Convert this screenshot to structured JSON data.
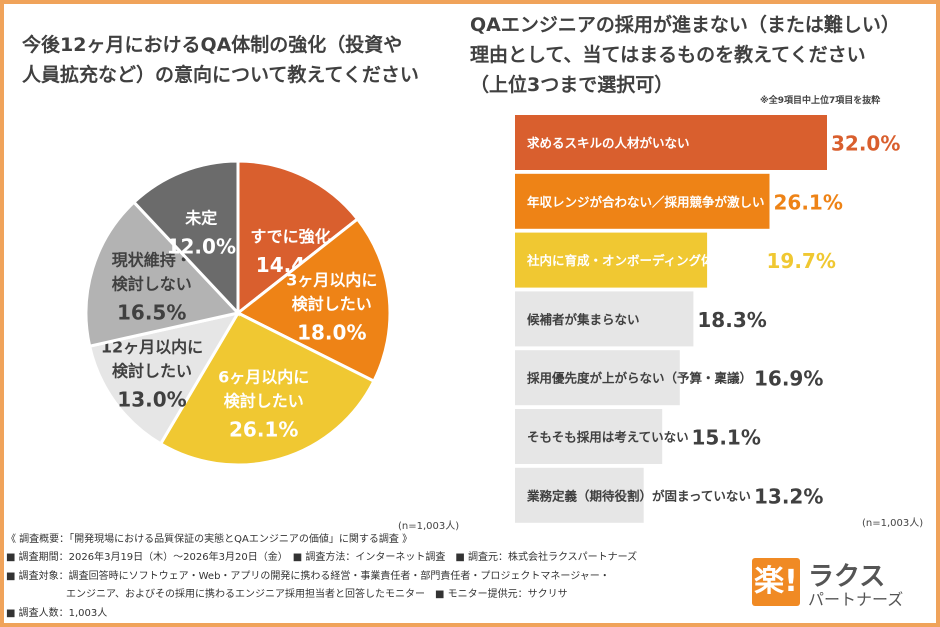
{
  "pie_title": "今後12ヶ月におけるQA体制の強化（投資や\n人員拡充など）の意向について教えてください",
  "bar_title": "QAエンジニアの採用が進まない（または難しい）\n理由として、当てはまるものを教えてください\n（上位3つまで選択可）",
  "bar_note": "※全9項目中上位7項目を抜粋",
  "pie_n": "(n=1,003人)",
  "bar_n": "(n=1,003人)",
  "chart_data": [
    {
      "type": "pie",
      "title": "今後12ヶ月におけるQA体制の強化（投資や人員拡充など）の意向について教えてください",
      "slices": [
        {
          "label_lines": [
            "すでに強化"
          ],
          "value": 14.4,
          "value_label": "14.4%",
          "color": "#d95f2e",
          "text_color": "#ffffff"
        },
        {
          "label_lines": [
            "3ヶ月以内に",
            "検討したい"
          ],
          "value": 18.0,
          "value_label": "18.0%",
          "color": "#ee8316",
          "text_color": "#ffffff"
        },
        {
          "label_lines": [
            "6ヶ月以内に",
            "検討したい"
          ],
          "value": 26.1,
          "value_label": "26.1%",
          "color": "#f0c832",
          "text_color": "#ffffff"
        },
        {
          "label_lines": [
            "12ヶ月以内に",
            "検討したい"
          ],
          "value": 13.0,
          "value_label": "13.0%",
          "color": "#e6e6e6",
          "text_color": "#404040"
        },
        {
          "label_lines": [
            "現状維持・",
            "検討しない"
          ],
          "value": 16.5,
          "value_label": "16.5%",
          "color": "#b3b3b3",
          "text_color": "#404040"
        },
        {
          "label_lines": [
            "未定"
          ],
          "value": 12.0,
          "value_label": "12.0%",
          "color": "#6b6b6b",
          "text_color": "#ffffff"
        }
      ],
      "n_label": "(n=1,003人)"
    },
    {
      "type": "bar",
      "orientation": "horizontal",
      "title": "QAエンジニアの採用が進まない（または難しい）理由として、当てはまるものを教えてください（上位3つまで選択可）",
      "categories": [
        "求めるスキルの人材がいない",
        "年収レンジが合わない／採用競争が激しい",
        "社内に育成・オンボーディング体制がない",
        "候補者が集まらない",
        "採用優先度が上がらない（予算・稟議）",
        "そもそも採用は考えていない",
        "業務定義（期待役割）が固まっていない"
      ],
      "values": [
        32.0,
        26.1,
        19.7,
        18.3,
        16.9,
        15.1,
        13.2
      ],
      "value_labels": [
        "32.0%",
        "26.1%",
        "19.7%",
        "18.3%",
        "16.9%",
        "15.1%",
        "13.2%"
      ],
      "bar_colors": [
        "#d95f2e",
        "#ee8316",
        "#f0c832",
        "#e6e6e6",
        "#e6e6e6",
        "#e6e6e6",
        "#e6e6e6"
      ],
      "label_colors": [
        "#ffffff",
        "#ffffff",
        "#ffffff",
        "#404040",
        "#404040",
        "#404040",
        "#404040"
      ],
      "value_colors": [
        "#d95f2e",
        "#ee8316",
        "#f0c832",
        "#404040",
        "#404040",
        "#404040",
        "#404040"
      ],
      "note": "※全9項目中上位7項目を抜粋",
      "n_label": "(n=1,003人)"
    }
  ],
  "footer": {
    "overview": "《 調査概要：「開発現場における品質保証の実態とQAエンジニアの価値」に関する調査 》",
    "period": "■ 調査期間：2026年3月19日（木）～2026年3月20日（金）　■ 調査方法：インターネット調査　■ 調査元：株式会社ラクスパートナーズ",
    "target1": "■ 調査対象：調査回答時にソフトウェア・Web・アプリの開発に携わる経営・事業責任者・部門責任者・プロジェクトマネージャー・",
    "target2": "　　　　　　エンジニア、およびその採用に携わるエンジニア採用担当者と回答したモニター　■ モニター提供元：サクリサ",
    "count": "■ 調査人数：1,003人"
  },
  "logo": {
    "mark": "楽!",
    "name": "ラクス",
    "sub": "パートナーズ"
  }
}
